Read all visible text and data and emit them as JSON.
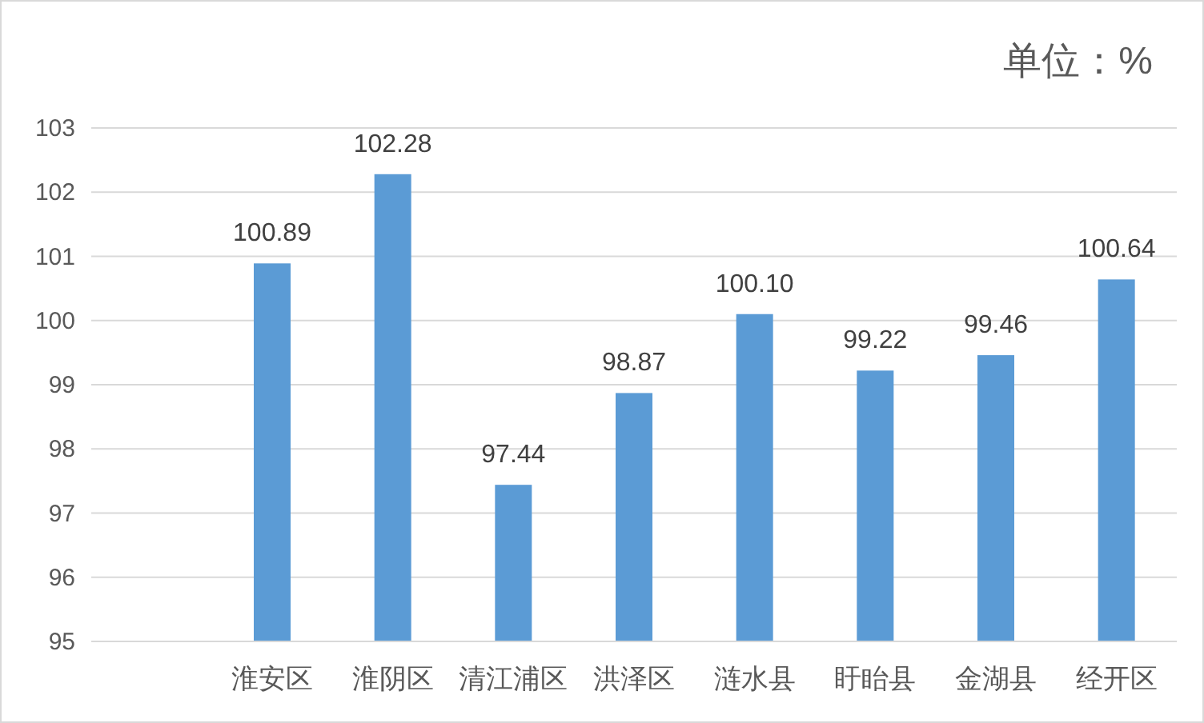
{
  "chart_data": {
    "type": "bar",
    "annotations": [
      "单位：%"
    ],
    "categories": [
      null,
      "淮安区",
      "淮阴区",
      "清江浦区",
      "洪泽区",
      "涟水县",
      "盱眙县",
      "金湖县",
      "经开区"
    ],
    "values": [
      null,
      100.89,
      102.28,
      97.44,
      98.87,
      100.1,
      99.22,
      99.46,
      100.64
    ],
    "value_labels": [
      null,
      "100.89",
      "102.28",
      "97.44",
      "98.87",
      "100.10",
      "99.22",
      "99.46",
      "100.64"
    ],
    "color": "#5b9bd5",
    "ylim": [
      95,
      103
    ],
    "yticks": [
      95,
      96,
      97,
      98,
      99,
      100,
      101,
      102,
      103
    ],
    "grid": "y"
  }
}
